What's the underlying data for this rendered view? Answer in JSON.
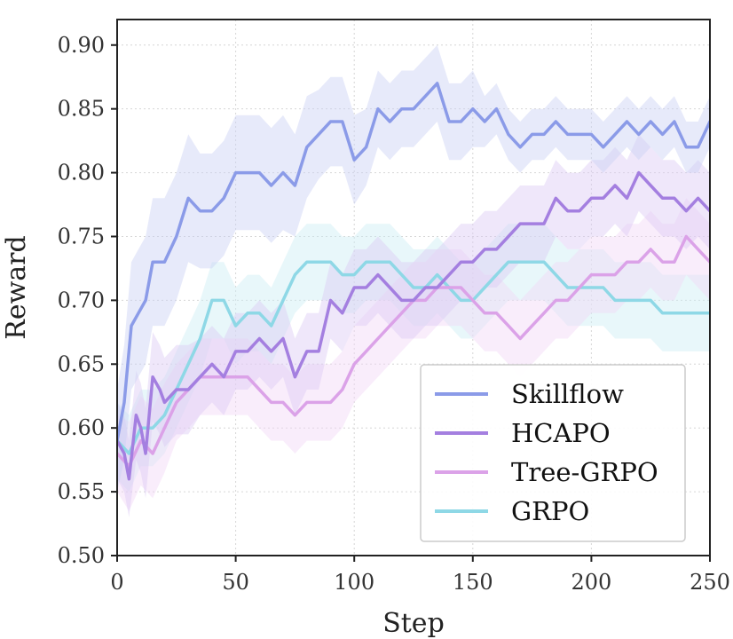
{
  "chart_data": {
    "type": "line",
    "xlabel": "Step",
    "ylabel": "Reward",
    "xlim": [
      0,
      250
    ],
    "ylim": [
      0.5,
      0.92
    ],
    "xticks": [
      0,
      50,
      100,
      150,
      200,
      250
    ],
    "xtick_labels": [
      "0",
      "50",
      "100",
      "150",
      "200",
      "250"
    ],
    "yticks": [
      0.5,
      0.55,
      0.6,
      0.65,
      0.7,
      0.75,
      0.8,
      0.85,
      0.9
    ],
    "ytick_labels": [
      "0.50",
      "0.55",
      "0.60",
      "0.65",
      "0.70",
      "0.75",
      "0.80",
      "0.85",
      "0.90"
    ],
    "grid": true,
    "legend_position": "bottom-right",
    "series": [
      {
        "name": "Skillflow",
        "color": "#8b9be8",
        "band_color": "#c9d0f4",
        "x": [
          0,
          3,
          6,
          9,
          12,
          15,
          20,
          25,
          30,
          35,
          40,
          45,
          50,
          55,
          60,
          65,
          70,
          75,
          80,
          85,
          90,
          95,
          100,
          105,
          110,
          115,
          120,
          125,
          130,
          135,
          140,
          145,
          150,
          155,
          160,
          165,
          170,
          175,
          180,
          185,
          190,
          195,
          200,
          205,
          210,
          215,
          220,
          225,
          230,
          235,
          240,
          245,
          250
        ],
        "values": [
          0.59,
          0.62,
          0.68,
          0.69,
          0.7,
          0.73,
          0.73,
          0.75,
          0.78,
          0.77,
          0.77,
          0.78,
          0.8,
          0.8,
          0.8,
          0.79,
          0.8,
          0.79,
          0.82,
          0.83,
          0.84,
          0.84,
          0.81,
          0.82,
          0.85,
          0.84,
          0.85,
          0.85,
          0.86,
          0.87,
          0.84,
          0.84,
          0.85,
          0.84,
          0.85,
          0.83,
          0.82,
          0.83,
          0.83,
          0.84,
          0.83,
          0.83,
          0.83,
          0.82,
          0.83,
          0.84,
          0.83,
          0.84,
          0.83,
          0.84,
          0.82,
          0.82,
          0.84
        ],
        "band": [
          0.04,
          0.045,
          0.05,
          0.05,
          0.05,
          0.05,
          0.05,
          0.05,
          0.05,
          0.045,
          0.045,
          0.045,
          0.045,
          0.045,
          0.045,
          0.045,
          0.045,
          0.04,
          0.04,
          0.035,
          0.035,
          0.035,
          0.035,
          0.03,
          0.03,
          0.03,
          0.03,
          0.03,
          0.03,
          0.03,
          0.03,
          0.03,
          0.03,
          0.02,
          0.02,
          0.02,
          0.02,
          0.02,
          0.02,
          0.02,
          0.02,
          0.02,
          0.02,
          0.02,
          0.02,
          0.02,
          0.02,
          0.02,
          0.02,
          0.02,
          0.02,
          0.02,
          0.02
        ]
      },
      {
        "name": "HCAPO",
        "color": "#a47fe0",
        "band_color": "#dccaf4",
        "x": [
          0,
          3,
          5,
          8,
          10,
          12,
          15,
          18,
          20,
          25,
          30,
          35,
          40,
          45,
          50,
          55,
          60,
          65,
          70,
          75,
          80,
          85,
          90,
          95,
          100,
          105,
          110,
          115,
          120,
          125,
          130,
          135,
          140,
          145,
          150,
          155,
          160,
          165,
          170,
          175,
          180,
          185,
          190,
          195,
          200,
          205,
          210,
          215,
          220,
          225,
          230,
          235,
          240,
          245,
          250
        ],
        "values": [
          0.59,
          0.58,
          0.56,
          0.61,
          0.6,
          0.58,
          0.64,
          0.63,
          0.62,
          0.63,
          0.63,
          0.64,
          0.65,
          0.64,
          0.66,
          0.66,
          0.67,
          0.66,
          0.67,
          0.64,
          0.66,
          0.66,
          0.7,
          0.69,
          0.71,
          0.71,
          0.72,
          0.71,
          0.7,
          0.7,
          0.71,
          0.71,
          0.72,
          0.73,
          0.73,
          0.74,
          0.74,
          0.75,
          0.76,
          0.76,
          0.76,
          0.78,
          0.77,
          0.77,
          0.78,
          0.78,
          0.79,
          0.78,
          0.8,
          0.79,
          0.78,
          0.78,
          0.77,
          0.78,
          0.77
        ],
        "band": [
          0.03,
          0.03,
          0.03,
          0.035,
          0.035,
          0.035,
          0.035,
          0.035,
          0.035,
          0.035,
          0.035,
          0.03,
          0.03,
          0.03,
          0.03,
          0.03,
          0.03,
          0.03,
          0.03,
          0.03,
          0.03,
          0.03,
          0.03,
          0.03,
          0.03,
          0.03,
          0.03,
          0.03,
          0.03,
          0.03,
          0.03,
          0.03,
          0.03,
          0.03,
          0.03,
          0.03,
          0.03,
          0.03,
          0.03,
          0.03,
          0.03,
          0.03,
          0.03,
          0.03,
          0.03,
          0.03,
          0.03,
          0.03,
          0.03,
          0.03,
          0.03,
          0.03,
          0.03,
          0.03,
          0.03
        ]
      },
      {
        "name": "Tree-GRPO",
        "color": "#dba2e8",
        "band_color": "#f2d8f6",
        "x": [
          0,
          5,
          10,
          15,
          20,
          25,
          30,
          35,
          40,
          45,
          50,
          55,
          60,
          65,
          70,
          75,
          80,
          85,
          90,
          95,
          100,
          105,
          110,
          115,
          120,
          125,
          130,
          135,
          140,
          145,
          150,
          155,
          160,
          165,
          170,
          175,
          180,
          185,
          190,
          195,
          200,
          205,
          210,
          215,
          220,
          225,
          230,
          235,
          240,
          245,
          250
        ],
        "values": [
          0.58,
          0.57,
          0.59,
          0.58,
          0.6,
          0.62,
          0.63,
          0.64,
          0.64,
          0.64,
          0.64,
          0.64,
          0.63,
          0.62,
          0.62,
          0.61,
          0.62,
          0.62,
          0.62,
          0.63,
          0.65,
          0.66,
          0.67,
          0.68,
          0.69,
          0.7,
          0.7,
          0.71,
          0.71,
          0.71,
          0.7,
          0.69,
          0.69,
          0.68,
          0.67,
          0.68,
          0.69,
          0.7,
          0.7,
          0.71,
          0.72,
          0.72,
          0.72,
          0.73,
          0.73,
          0.74,
          0.73,
          0.73,
          0.75,
          0.74,
          0.73
        ],
        "band": [
          0.03,
          0.035,
          0.035,
          0.035,
          0.035,
          0.03,
          0.03,
          0.03,
          0.03,
          0.03,
          0.03,
          0.03,
          0.03,
          0.03,
          0.03,
          0.03,
          0.03,
          0.03,
          0.03,
          0.03,
          0.03,
          0.03,
          0.03,
          0.03,
          0.03,
          0.03,
          0.03,
          0.03,
          0.03,
          0.03,
          0.03,
          0.03,
          0.03,
          0.03,
          0.03,
          0.03,
          0.03,
          0.03,
          0.03,
          0.03,
          0.03,
          0.03,
          0.03,
          0.03,
          0.03,
          0.03,
          0.03,
          0.03,
          0.03,
          0.03,
          0.03
        ]
      },
      {
        "name": "GRPO",
        "color": "#8ed8e6",
        "band_color": "#cdeef4",
        "x": [
          0,
          5,
          10,
          15,
          20,
          25,
          30,
          35,
          40,
          45,
          50,
          55,
          60,
          65,
          70,
          75,
          80,
          85,
          90,
          95,
          100,
          105,
          110,
          115,
          120,
          125,
          130,
          135,
          140,
          145,
          150,
          155,
          160,
          165,
          170,
          175,
          180,
          185,
          190,
          195,
          200,
          205,
          210,
          215,
          220,
          225,
          230,
          235,
          240,
          245,
          250
        ],
        "values": [
          0.59,
          0.58,
          0.6,
          0.6,
          0.61,
          0.63,
          0.65,
          0.67,
          0.7,
          0.7,
          0.68,
          0.69,
          0.69,
          0.68,
          0.7,
          0.72,
          0.73,
          0.73,
          0.73,
          0.72,
          0.72,
          0.73,
          0.73,
          0.73,
          0.72,
          0.71,
          0.71,
          0.72,
          0.71,
          0.7,
          0.7,
          0.71,
          0.72,
          0.73,
          0.73,
          0.73,
          0.73,
          0.72,
          0.71,
          0.71,
          0.71,
          0.71,
          0.7,
          0.7,
          0.7,
          0.7,
          0.69,
          0.69,
          0.69,
          0.69,
          0.69
        ],
        "band": [
          0.03,
          0.03,
          0.03,
          0.03,
          0.03,
          0.03,
          0.03,
          0.03,
          0.03,
          0.03,
          0.03,
          0.03,
          0.03,
          0.03,
          0.03,
          0.03,
          0.03,
          0.03,
          0.03,
          0.03,
          0.03,
          0.03,
          0.03,
          0.03,
          0.03,
          0.03,
          0.03,
          0.03,
          0.03,
          0.03,
          0.03,
          0.03,
          0.03,
          0.03,
          0.03,
          0.03,
          0.03,
          0.03,
          0.03,
          0.03,
          0.03,
          0.03,
          0.03,
          0.03,
          0.03,
          0.03,
          0.03,
          0.03,
          0.03,
          0.03,
          0.03
        ]
      }
    ]
  }
}
